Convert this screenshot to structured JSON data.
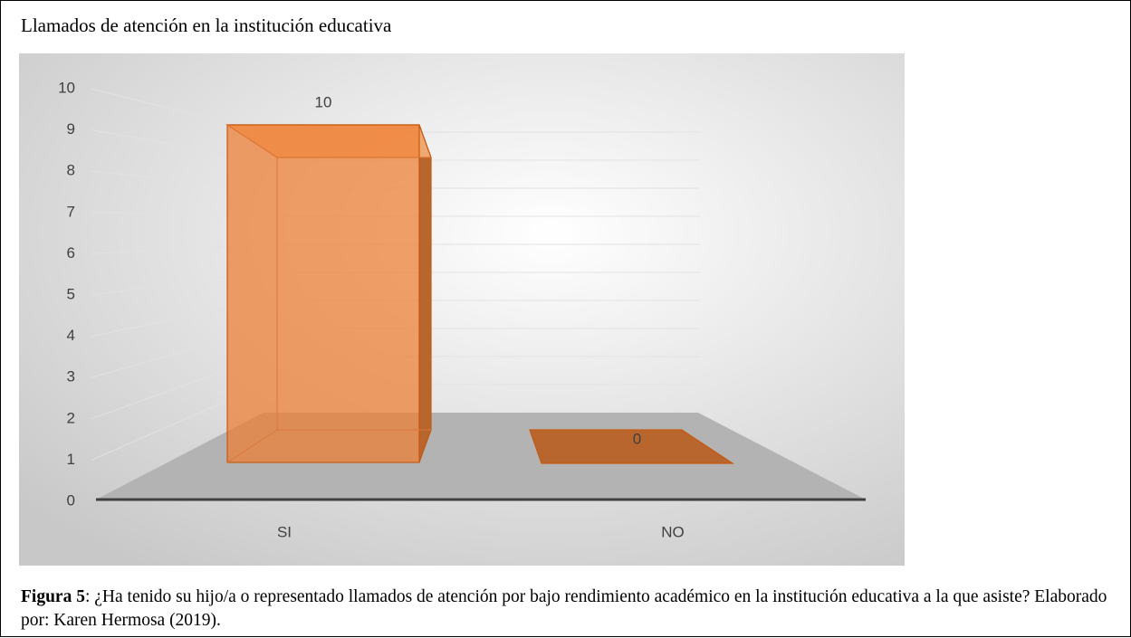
{
  "chart_data": {
    "type": "bar3d",
    "title": "Llamados de atención en la institución educativa",
    "categories": [
      "SI",
      "NO"
    ],
    "values": [
      10,
      0
    ],
    "color": "#ed7d31",
    "ylim": [
      0,
      10
    ],
    "yticks": [
      0,
      1,
      2,
      3,
      4,
      5,
      6,
      7,
      8,
      9,
      10
    ],
    "grid": true,
    "caption_label": "Figura 5",
    "caption_text": ": ¿Ha tenido su hijo/a o representado llamados de atención por bajo rendimiento académico en la institución educativa a la que asiste? Elaborado por: Karen Hermosa (2019)."
  }
}
